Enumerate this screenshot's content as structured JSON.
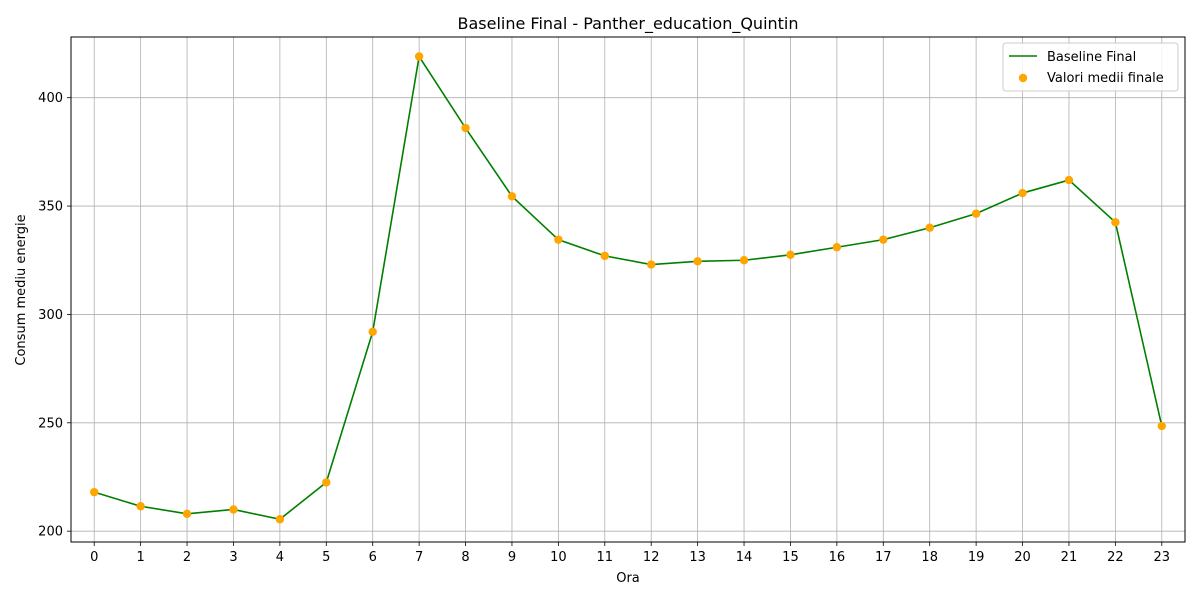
{
  "chart_data": {
    "type": "line",
    "title": "Baseline Final - Panther_education_Quintin",
    "xlabel": "Ora",
    "ylabel": "Consum mediu energie",
    "x": [
      0,
      1,
      2,
      3,
      4,
      5,
      6,
      7,
      8,
      9,
      10,
      11,
      12,
      13,
      14,
      15,
      16,
      17,
      18,
      19,
      20,
      21,
      22,
      23
    ],
    "xlim": [
      -0.5,
      23.5
    ],
    "ylim": [
      195,
      428
    ],
    "yticks": [
      200,
      250,
      300,
      350,
      400
    ],
    "grid": true,
    "legend_position": "top-right",
    "series": [
      {
        "name": "Baseline Final",
        "kind": "line",
        "color": "#008000",
        "values": [
          218,
          211.5,
          208,
          210,
          205.5,
          222.5,
          292,
          419,
          386,
          354.5,
          334.5,
          327,
          323,
          324.5,
          325,
          327.5,
          331,
          334.5,
          340,
          346.5,
          356,
          362,
          342.5,
          248.5
        ]
      },
      {
        "name": "Valori medii finale",
        "kind": "scatter",
        "color": "#FFA500",
        "values": [
          218,
          211.5,
          208,
          210,
          205.5,
          222.5,
          292,
          419,
          386,
          354.5,
          334.5,
          327,
          323,
          324.5,
          325,
          327.5,
          331,
          334.5,
          340,
          346.5,
          356,
          362,
          342.5,
          248.5
        ]
      }
    ]
  }
}
